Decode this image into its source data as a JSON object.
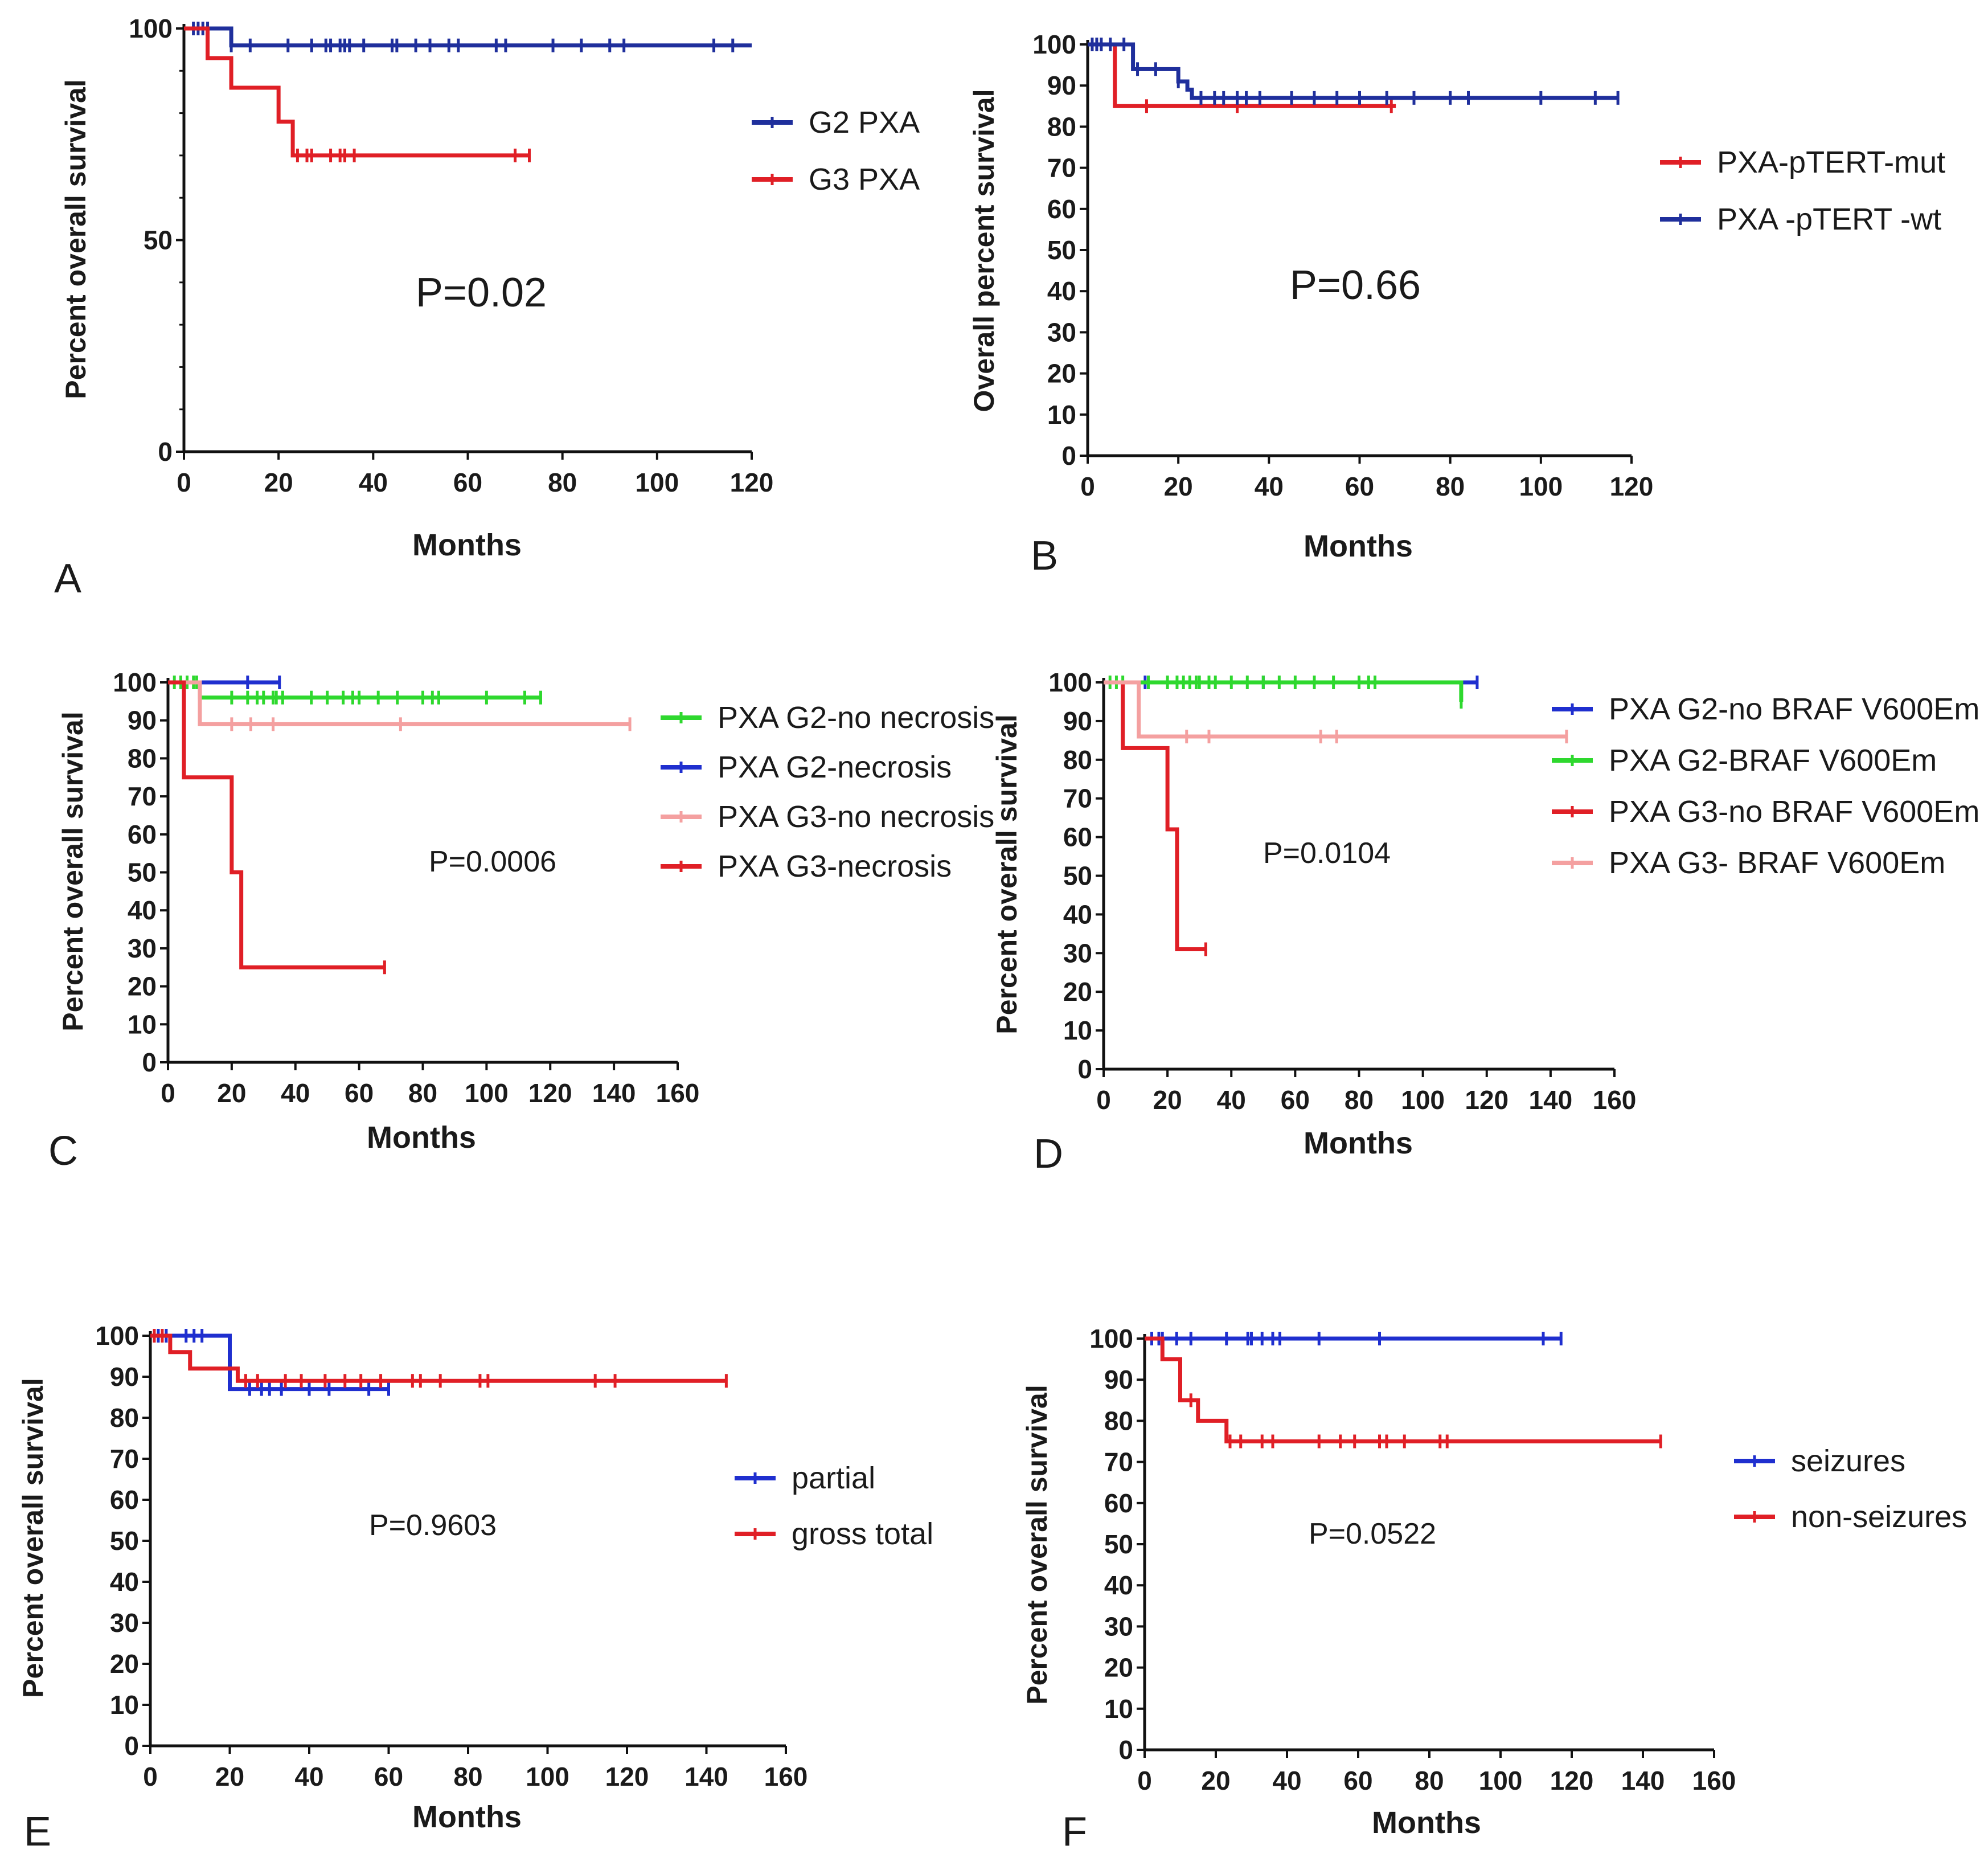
{
  "chart_data": [
    {
      "type": "line",
      "panel": "A",
      "xlabel": "Months",
      "ylabel": "Percent overall survival",
      "xlim": [
        0,
        120
      ],
      "ylim": [
        0,
        100
      ],
      "xticks": [
        0,
        20,
        40,
        60,
        80,
        100,
        120
      ],
      "yticks": [
        0,
        50,
        100
      ],
      "yminor": 10,
      "pvalue": "P=0.02",
      "series": [
        {
          "name": "G2 PXA",
          "color": "#1f2f9c",
          "x": [
            0,
            10,
            120
          ],
          "y": [
            100,
            96,
            96
          ],
          "censored": [
            2,
            3,
            4,
            5,
            10,
            14,
            22,
            27,
            30,
            31,
            33,
            34,
            35,
            38,
            44,
            45,
            49,
            52,
            56,
            58,
            66,
            68,
            78,
            84,
            90,
            93,
            112,
            116
          ]
        },
        {
          "name": "G3 PXA",
          "color": "#e01f26",
          "x": [
            0,
            5,
            10,
            20,
            23,
            73
          ],
          "y": [
            100,
            93,
            86,
            78,
            70,
            70
          ],
          "censored": [
            24,
            26,
            27,
            31,
            33,
            34,
            36,
            70,
            73
          ]
        }
      ]
    },
    {
      "type": "line",
      "panel": "B",
      "xlabel": "Months",
      "ylabel": "Overall percent survival",
      "xlim": [
        0,
        120
      ],
      "ylim": [
        0,
        100
      ],
      "xticks": [
        0,
        20,
        40,
        60,
        80,
        100,
        120
      ],
      "yticks": [
        0,
        10,
        20,
        30,
        40,
        50,
        60,
        70,
        80,
        90,
        100
      ],
      "pvalue": "P=0.66",
      "series": [
        {
          "name": "PXA-pTERT-mut",
          "color": "#e01f26",
          "x": [
            0,
            6,
            68
          ],
          "y": [
            100,
            85,
            85
          ],
          "censored": [
            13,
            33,
            67
          ]
        },
        {
          "name": "PXA -pTERT -wt",
          "color": "#1f2f9c",
          "x": [
            0,
            10,
            20,
            22,
            23,
            117
          ],
          "y": [
            100,
            94,
            91,
            89,
            87,
            87
          ],
          "censored": [
            1,
            2,
            3,
            5,
            8,
            11,
            15,
            20,
            25,
            28,
            30,
            33,
            35,
            38,
            45,
            50,
            55,
            60,
            66,
            72,
            80,
            84,
            100,
            112,
            117
          ]
        }
      ]
    },
    {
      "type": "line",
      "panel": "C",
      "xlabel": "Months",
      "ylabel": "Percent overall survival",
      "xlim": [
        0,
        160
      ],
      "ylim": [
        0,
        100
      ],
      "xticks": [
        0,
        20,
        40,
        60,
        80,
        100,
        120,
        140,
        160
      ],
      "yticks": [
        0,
        10,
        20,
        30,
        40,
        50,
        60,
        70,
        80,
        90,
        100
      ],
      "pvalue": "P=0.0006",
      "series": [
        {
          "name": "PXA G2-no necrosis",
          "color": "#2ed82e",
          "x": [
            0,
            10,
            117
          ],
          "y": [
            100,
            96,
            96
          ],
          "censored": [
            2,
            4,
            6,
            8,
            9,
            20,
            25,
            28,
            30,
            33,
            34,
            36,
            45,
            50,
            55,
            58,
            60,
            66,
            72,
            80,
            83,
            85,
            100,
            112,
            117
          ]
        },
        {
          "name": "PXA G2-necrosis",
          "color": "#1f2fcf",
          "x": [
            0,
            35
          ],
          "y": [
            100,
            100
          ],
          "censored": [
            25,
            35
          ]
        },
        {
          "name": "PXA G3-no necrosis",
          "color": "#f4a0a0",
          "x": [
            0,
            10,
            145
          ],
          "y": [
            100,
            89,
            89
          ],
          "censored": [
            20,
            26,
            33,
            73,
            145
          ]
        },
        {
          "name": "PXA G3-necrosis",
          "color": "#e01f26",
          "x": [
            0,
            5,
            20,
            23,
            68
          ],
          "y": [
            100,
            75,
            50,
            25,
            25
          ],
          "censored": [
            68
          ]
        }
      ]
    },
    {
      "type": "line",
      "panel": "D",
      "xlabel": "Months",
      "ylabel": "Percent overall survival",
      "xlim": [
        0,
        160
      ],
      "ylim": [
        0,
        100
      ],
      "xticks": [
        0,
        20,
        40,
        60,
        80,
        100,
        120,
        140,
        160
      ],
      "yticks": [
        0,
        10,
        20,
        30,
        40,
        50,
        60,
        70,
        80,
        90,
        100
      ],
      "pvalue": "P=0.0104",
      "series": [
        {
          "name": "PXA G2-no BRAF V600Em",
          "color": "#1f2fcf",
          "x": [
            0,
            117
          ],
          "y": [
            100,
            100
          ],
          "censored": [
            13,
            50,
            117
          ]
        },
        {
          "name": "PXA G2-BRAF V600Em",
          "color": "#2ed82e",
          "x": [
            0,
            10,
            112
          ],
          "y": [
            100,
            100,
            95
          ],
          "censored": [
            2,
            4,
            6,
            14,
            20,
            23,
            25,
            27,
            29,
            30,
            33,
            35,
            40,
            45,
            50,
            55,
            60,
            66,
            72,
            80,
            83,
            85,
            112
          ]
        },
        {
          "name": "PXA G3-no BRAF V600Em",
          "color": "#e01f26",
          "x": [
            0,
            6,
            20,
            23,
            32
          ],
          "y": [
            100,
            83,
            62,
            31,
            31
          ],
          "censored": [
            32
          ]
        },
        {
          "name": "PXA G3- BRAF V600Em",
          "color": "#f4a0a0",
          "x": [
            0,
            11,
            145
          ],
          "y": [
            100,
            86,
            86
          ],
          "censored": [
            26,
            33,
            68,
            73,
            145
          ]
        }
      ]
    },
    {
      "type": "line",
      "panel": "E",
      "xlabel": "Months",
      "ylabel": "Percent overall survival",
      "xlim": [
        0,
        160
      ],
      "ylim": [
        0,
        100
      ],
      "xticks": [
        0,
        20,
        40,
        60,
        80,
        100,
        120,
        140,
        160
      ],
      "yticks": [
        0,
        10,
        20,
        30,
        40,
        50,
        60,
        70,
        80,
        90,
        100
      ],
      "pvalue": "P=0.9603",
      "series": [
        {
          "name": "partial",
          "color": "#1f2fcf",
          "x": [
            0,
            20,
            60
          ],
          "y": [
            100,
            87,
            87
          ],
          "censored": [
            2,
            4,
            9,
            11,
            13,
            25,
            28,
            30,
            33,
            40,
            45,
            55,
            60
          ]
        },
        {
          "name": "gross total",
          "color": "#e01f26",
          "x": [
            0,
            5,
            10,
            20,
            22,
            145
          ],
          "y": [
            100,
            96,
            92,
            92,
            89,
            89
          ],
          "censored": [
            1,
            3,
            24,
            27,
            34,
            38,
            44,
            49,
            53,
            58,
            66,
            68,
            73,
            83,
            85,
            112,
            117,
            145
          ]
        }
      ]
    },
    {
      "type": "line",
      "panel": "F",
      "xlabel": "Months",
      "ylabel": "Percent overall survival",
      "xlim": [
        0,
        160
      ],
      "ylim": [
        0,
        100
      ],
      "xticks": [
        0,
        20,
        40,
        60,
        80,
        100,
        120,
        140,
        160
      ],
      "yticks": [
        0,
        10,
        20,
        30,
        40,
        50,
        60,
        70,
        80,
        90,
        100
      ],
      "pvalue": "P=0.0522",
      "series": [
        {
          "name": "seizures",
          "color": "#1f2fcf",
          "x": [
            0,
            117
          ],
          "y": [
            100,
            100
          ],
          "censored": [
            2,
            4,
            5,
            9,
            13,
            23,
            29,
            30,
            33,
            36,
            38,
            49,
            66,
            112,
            117
          ]
        },
        {
          "name": "non-seizures",
          "color": "#e01f26",
          "x": [
            0,
            5,
            10,
            15,
            20,
            23,
            145
          ],
          "y": [
            100,
            95,
            85,
            80,
            80,
            75,
            75
          ],
          "censored": [
            13,
            24,
            27,
            33,
            36,
            49,
            55,
            59,
            66,
            68,
            73,
            83,
            85,
            145
          ]
        }
      ]
    }
  ]
}
